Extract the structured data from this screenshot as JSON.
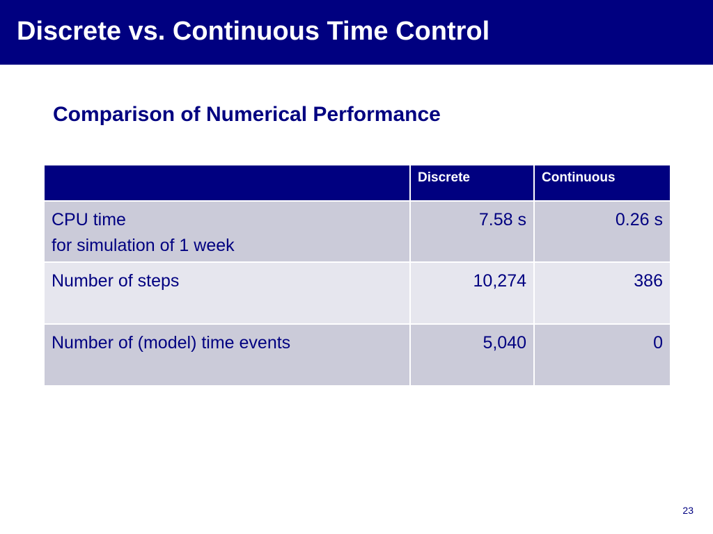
{
  "slide": {
    "title": "Discrete vs. Continuous Time Control",
    "subtitle": "Comparison of Numerical Performance",
    "page_number": "23"
  },
  "table": {
    "columns": [
      "",
      "Discrete",
      "Continuous"
    ],
    "rows": [
      {
        "label_lines": [
          "CPU time",
          "for simulation of 1 week"
        ],
        "discrete": "7.58 s",
        "continuous": "0.26 s"
      },
      {
        "label_lines": [
          "Number of steps"
        ],
        "discrete": "10,274",
        "continuous": "386"
      },
      {
        "label_lines": [
          "Number of (model) time events"
        ],
        "discrete": "5,040",
        "continuous": "0"
      }
    ]
  },
  "colors": {
    "primary": "#000080",
    "row_dark": "#cbcbd9",
    "row_light": "#e6e6ee",
    "background": "#ffffff"
  }
}
